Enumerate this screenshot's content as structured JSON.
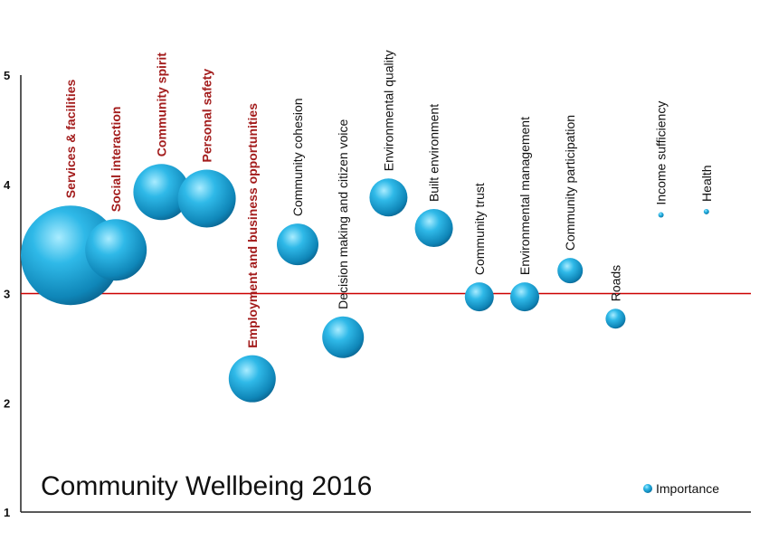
{
  "chart_data": {
    "type": "scatter",
    "title": "Community Wellbeing 2016",
    "ylim": [
      1,
      5
    ],
    "yticks": [
      "1",
      "2",
      "3",
      "4",
      "5"
    ],
    "reference_line": {
      "y": 3,
      "color": "#cc0000"
    },
    "legend": {
      "label": "Importance",
      "position": "bottom-right"
    },
    "bubble_color": "#1ea6d8",
    "highlight_label_color": "#a31c1c",
    "points": [
      {
        "label": "Services & facilities",
        "y": 3.35,
        "size": 5.5,
        "highlight": true
      },
      {
        "label": "Social interaction",
        "y": 3.4,
        "size": 3.4,
        "highlight": true
      },
      {
        "label": "Community spirit",
        "y": 3.93,
        "size": 3.1,
        "highlight": true
      },
      {
        "label": "Personal safety",
        "y": 3.87,
        "size": 3.2,
        "highlight": true
      },
      {
        "label": "Employment and business opportunities",
        "y": 2.22,
        "size": 2.6,
        "highlight": true
      },
      {
        "label": "Community cohesion",
        "y": 3.45,
        "size": 2.3,
        "highlight": false
      },
      {
        "label": "Decision making and citizen voice",
        "y": 2.6,
        "size": 2.3,
        "highlight": false
      },
      {
        "label": "Environmental quality",
        "y": 3.88,
        "size": 2.1,
        "highlight": false
      },
      {
        "label": "Built environment",
        "y": 3.6,
        "size": 2.1,
        "highlight": false
      },
      {
        "label": "Community trust",
        "y": 2.97,
        "size": 1.6,
        "highlight": false
      },
      {
        "label": "Environmental management",
        "y": 2.97,
        "size": 1.6,
        "highlight": false
      },
      {
        "label": "Community participation",
        "y": 3.21,
        "size": 1.4,
        "highlight": false
      },
      {
        "label": "Roads",
        "y": 2.77,
        "size": 1.1,
        "highlight": false
      },
      {
        "label": "Income sufficiency",
        "y": 3.72,
        "size": 0.3,
        "highlight": false
      },
      {
        "label": "Health",
        "y": 3.75,
        "size": 0.3,
        "highlight": false
      }
    ]
  }
}
